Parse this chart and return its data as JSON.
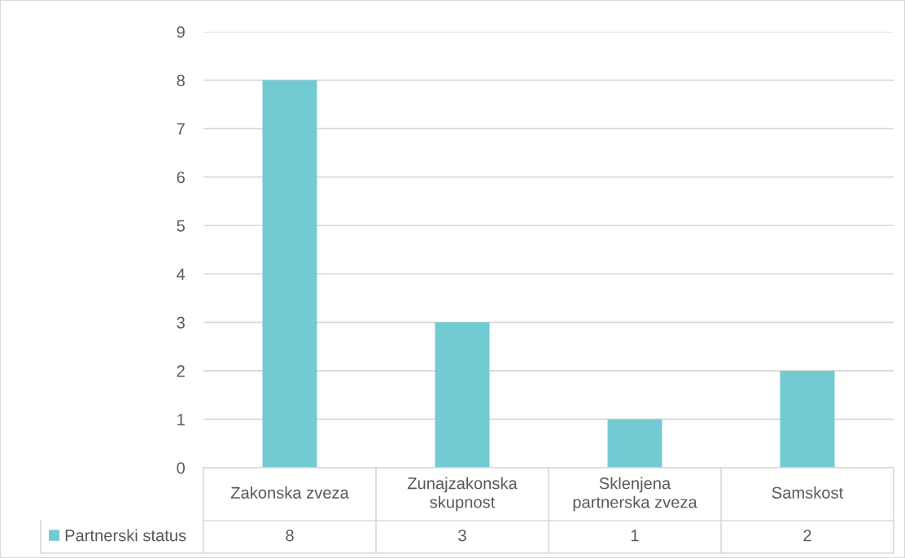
{
  "chart_data": {
    "type": "bar",
    "categories": [
      "Zakonska zveza",
      "Zunajzakonska skupnost",
      "Sklenjena partnerska zveza",
      "Samskost"
    ],
    "series": [
      {
        "name": "Partnerski status",
        "color": "#72cbd3",
        "values": [
          8,
          3,
          1,
          2
        ]
      }
    ],
    "ylim": [
      0,
      9
    ],
    "yticks": [
      0,
      1,
      2,
      3,
      4,
      5,
      6,
      7,
      8,
      9
    ],
    "grid": "y",
    "data_labels": true,
    "legend": "bottom"
  }
}
